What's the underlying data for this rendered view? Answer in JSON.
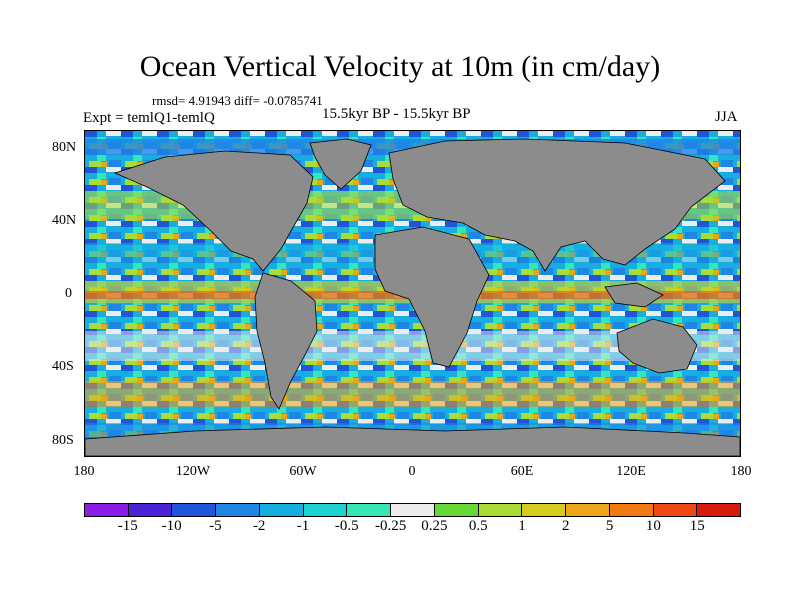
{
  "title": "Ocean Vertical Velocity at 10m (in cm/day)",
  "stats": "rmsd= 4.91943 diff= -0.0785741",
  "period": "15.5kyr BP - 15.5kyr BP",
  "experiment": "Expt = temlQ1-temlQ",
  "season": "JJA",
  "lat_labels": [
    "80N",
    "40N",
    "0",
    "40S",
    "80S"
  ],
  "lon_labels": [
    "180",
    "120W",
    "60W",
    "0",
    "60E",
    "120E",
    "180"
  ],
  "colorbar": {
    "labels": [
      "-15",
      "-10",
      "-5",
      "-2",
      "-1",
      "-0.5",
      "-0.25",
      "0.25",
      "0.5",
      "1",
      "2",
      "5",
      "10",
      "15"
    ],
    "colors": [
      "#8a1de6",
      "#4b22d6",
      "#1e55d9",
      "#1f86e6",
      "#16aee0",
      "#1ed2d2",
      "#36e6b7",
      "#ececec",
      "#66d836",
      "#a9dc36",
      "#d7cd1e",
      "#eda51b",
      "#f27a14",
      "#ee4a12",
      "#d81c0c"
    ]
  },
  "land_color": "#8c8c8c"
}
